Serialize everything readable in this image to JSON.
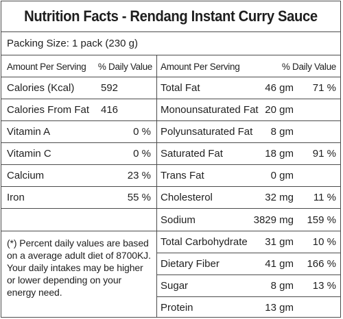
{
  "title": "Nutrition Facts - Rendang Instant Curry Sauce",
  "packing_size": "Packing Size: 1 pack (230 g)",
  "headers": {
    "left_amount": "Amount Per Serving",
    "left_dv": "% Daily Value",
    "right_amount": "Amount Per Serving",
    "right_dv": "% Daily Value"
  },
  "left_rows": [
    {
      "label": "Calories (Kcal)",
      "value": "592",
      "dv": ""
    },
    {
      "label": "Calories From Fat",
      "value": "416",
      "dv": ""
    },
    {
      "label": "Vitamin A",
      "value": "",
      "dv": "0 %"
    },
    {
      "label": "Vitamin C",
      "value": "",
      "dv": "0 %"
    },
    {
      "label": "Calcium",
      "value": "",
      "dv": "23 %"
    },
    {
      "label": "Iron",
      "value": "",
      "dv": "55 %"
    }
  ],
  "right_rows": [
    {
      "label": "Total Fat",
      "amount": "46 gm",
      "dv": "71 %"
    },
    {
      "label": "Monounsaturated Fat",
      "amount": "20 gm",
      "dv": ""
    },
    {
      "label": "Polyunsaturated Fat",
      "amount": "8 gm",
      "dv": ""
    },
    {
      "label": "Saturated Fat",
      "amount": "18 gm",
      "dv": "91 %"
    },
    {
      "label": "Trans Fat",
      "amount": "0 gm",
      "dv": ""
    },
    {
      "label": "Cholesterol",
      "amount": "32 mg",
      "dv": "11 %"
    },
    {
      "label": "Sodium",
      "amount": "3829 mg",
      "dv": "159 %"
    },
    {
      "label": "Total Carbohydrate",
      "amount": "31 gm",
      "dv": "10 %"
    },
    {
      "label": "Dietary Fiber",
      "amount": "41 gm",
      "dv": "166 %"
    },
    {
      "label": "Sugar",
      "amount": "8 gm",
      "dv": "13 %"
    },
    {
      "label": "Protein",
      "amount": "13 gm",
      "dv": ""
    }
  ],
  "footnote": "(*) Percent daily values are based on a average adult diet of 8700KJ. Your daily intakes may be higher or lower depending on your energy need."
}
